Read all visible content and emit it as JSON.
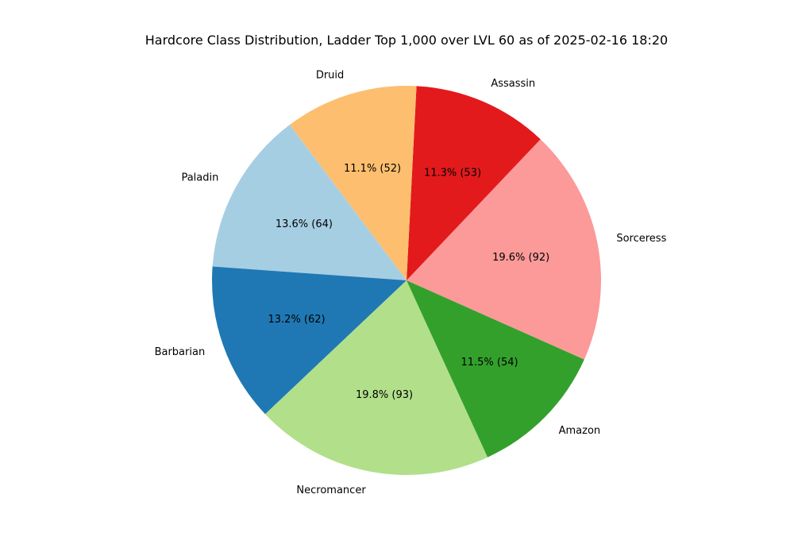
{
  "chart_data": {
    "type": "pie",
    "title": "Hardcore Class Distribution, Ladder Top 1,000 over LVL 60 as of 2025-02-16 18:20",
    "slices": [
      {
        "label": "Sorceress",
        "value": 92,
        "percent_label": "19.6% (92)",
        "color": "#fb9a99"
      },
      {
        "label": "Assassin",
        "value": 53,
        "percent_label": "11.3% (53)",
        "color": "#e31a1c"
      },
      {
        "label": "Druid",
        "value": 52,
        "percent_label": "11.1% (52)",
        "color": "#fdbf6f"
      },
      {
        "label": "Paladin",
        "value": 64,
        "percent_label": "13.6% (64)",
        "color": "#a6cee3"
      },
      {
        "label": "Barbarian",
        "value": 62,
        "percent_label": "13.2% (62)",
        "color": "#1f78b4"
      },
      {
        "label": "Necromancer",
        "value": 93,
        "percent_label": "19.8% (93)",
        "color": "#b2df8a"
      },
      {
        "label": "Amazon",
        "value": 54,
        "percent_label": "11.5% (54)",
        "color": "#33a02c"
      }
    ]
  }
}
